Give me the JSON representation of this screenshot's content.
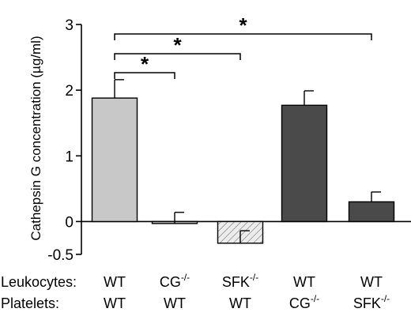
{
  "chart_data": {
    "type": "bar",
    "ylabel": "Cathepsin G concentration (µg/ml)",
    "ylim": [
      -0.5,
      3
    ],
    "yticks": [
      "-0.5",
      "0",
      "1",
      "2",
      "3"
    ],
    "row_labels": [
      "Leukocytes:",
      "Platelets:"
    ],
    "categories": [
      {
        "leukocytes": "WT",
        "platelets": "WT"
      },
      {
        "leukocytes": "CG",
        "leukocytes_sup": "-/-",
        "platelets": "WT"
      },
      {
        "leukocytes": "SFK",
        "leukocytes_sup": "-/-",
        "platelets": "WT"
      },
      {
        "leukocytes": "WT",
        "platelets": "CG",
        "platelets_sup": "-/-"
      },
      {
        "leukocytes": "WT",
        "platelets": "SFK",
        "platelets_sup": "-/-"
      }
    ],
    "values": [
      1.88,
      -0.03,
      -0.33,
      1.77,
      0.3
    ],
    "errors": [
      0.28,
      0.17,
      0.19,
      0.22,
      0.15
    ],
    "colors": [
      "#c8c8c8",
      "#c8c8c8",
      "#e6e6e6",
      "#4a4a4a",
      "#4a4a4a"
    ],
    "hatched": [
      false,
      false,
      true,
      false,
      false
    ],
    "significance": [
      {
        "from": 0,
        "to": 1,
        "label": "*"
      },
      {
        "from": 0,
        "to": 2,
        "label": "*"
      },
      {
        "from": 0,
        "to": 4,
        "label": "*"
      }
    ]
  }
}
